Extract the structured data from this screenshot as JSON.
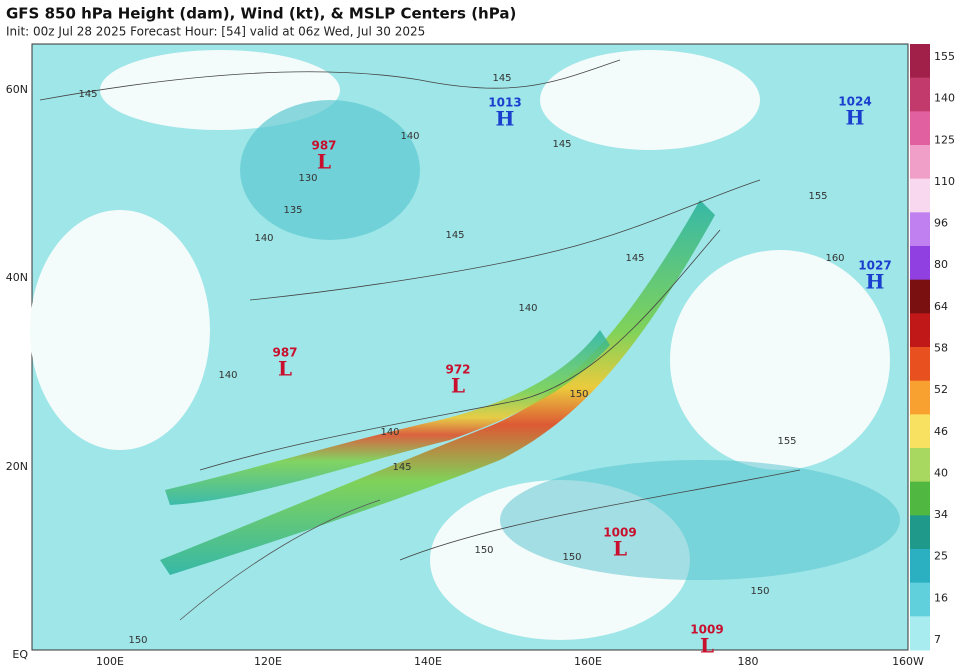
{
  "header": {
    "title": "GFS 850 hPa Height (dam), Wind (kt), & MSLP Centers (hPa)",
    "subtitle": "Init: 00z Jul 28 2025   Forecast Hour: [54]   valid at 06z Wed, Jul 30 2025"
  },
  "map": {
    "lon_labels": [
      "100E",
      "120E",
      "140E",
      "160E",
      "180",
      "160W"
    ],
    "lat_labels": [
      "60N",
      "40N",
      "20N",
      "EQ"
    ],
    "centers": [
      {
        "pressure": "1013",
        "letter": "H"
      },
      {
        "pressure": "1024",
        "letter": "H"
      },
      {
        "pressure": "987",
        "letter": "L"
      },
      {
        "pressure": "1027",
        "letter": "H"
      },
      {
        "pressure": "987",
        "letter": "L"
      },
      {
        "pressure": "972",
        "letter": "L"
      },
      {
        "pressure": "1009",
        "letter": "L"
      },
      {
        "pressure": "1009",
        "letter": "L"
      }
    ],
    "contour_labels": [
      "145",
      "145",
      "145",
      "140",
      "130",
      "135",
      "140",
      "145",
      "155",
      "160",
      "145",
      "140",
      "140",
      "150",
      "140",
      "145",
      "155",
      "150",
      "150",
      "150",
      "150"
    ]
  },
  "colorbar": {
    "ticks": [
      "155",
      "140",
      "125",
      "110",
      "96",
      "80",
      "64",
      "58",
      "52",
      "46",
      "40",
      "34",
      "25",
      "16",
      "7"
    ]
  }
}
